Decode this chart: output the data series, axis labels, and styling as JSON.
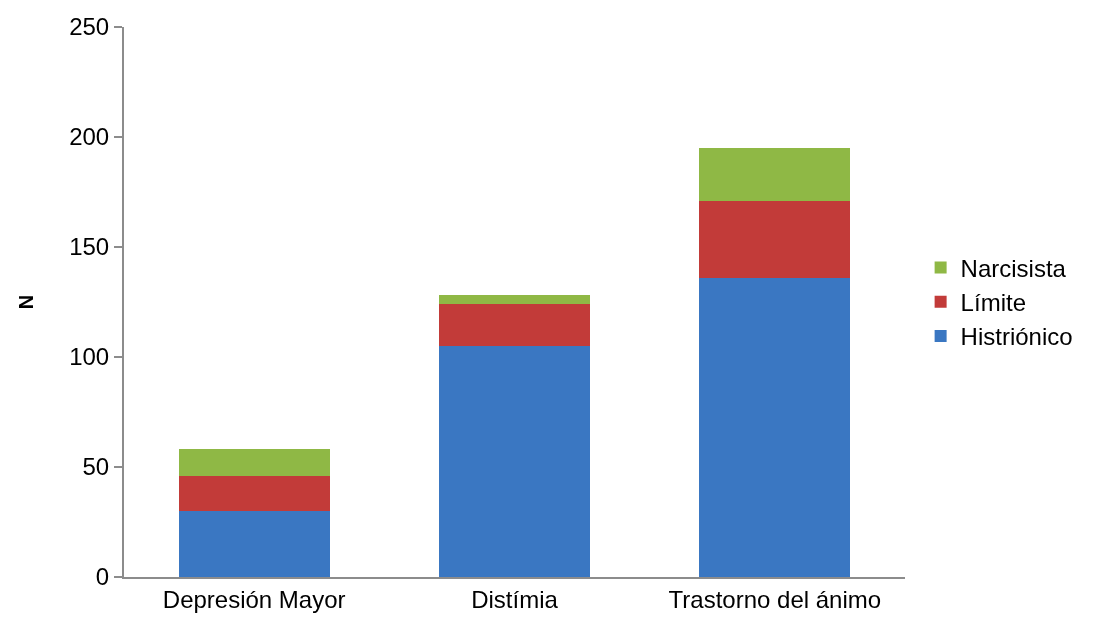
{
  "chart_data": {
    "type": "bar",
    "stacked": true,
    "ylabel": "N",
    "categories": [
      "Depresión Mayor",
      "Distímia",
      "Trastorno del ánimo"
    ],
    "series": [
      {
        "name": "Histriónico",
        "color": "#3a77c2",
        "values": [
          30,
          105,
          136
        ]
      },
      {
        "name": "Límite",
        "color": "#c23b39",
        "values": [
          16,
          19,
          35
        ]
      },
      {
        "name": "Narcisista",
        "color": "#8fb845",
        "values": [
          12,
          4,
          24
        ]
      }
    ],
    "ylim": [
      0,
      250
    ],
    "yticks": [
      0,
      50,
      100,
      150,
      200,
      250
    ],
    "grid": false,
    "legend": "right"
  }
}
